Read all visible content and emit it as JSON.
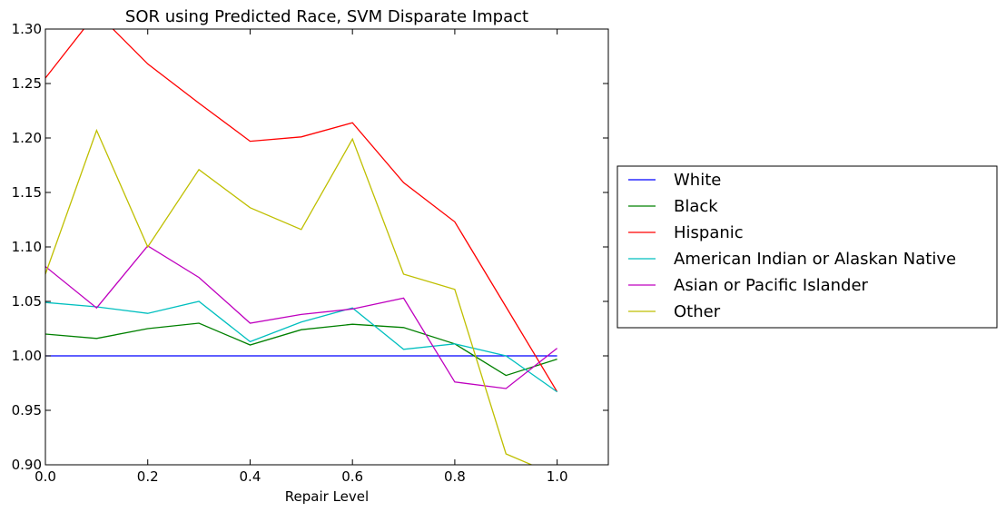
{
  "chart_data": {
    "type": "line",
    "title": "SOR using Predicted Race, SVM Disparate Impact",
    "xlabel": "Repair Level",
    "ylabel": "",
    "xlim": [
      0.0,
      1.1
    ],
    "ylim": [
      0.9,
      1.3
    ],
    "xticks": [
      "0.0",
      "0.2",
      "0.4",
      "0.6",
      "0.8",
      "1.0"
    ],
    "yticks": [
      "0.90",
      "0.95",
      "1.00",
      "1.05",
      "1.10",
      "1.15",
      "1.20",
      "1.25",
      "1.30"
    ],
    "grid": false,
    "legend_position": "right-outside",
    "x": [
      0.0,
      0.1,
      0.2,
      0.3,
      0.4,
      0.5,
      0.6,
      0.7,
      0.8,
      0.9,
      1.0
    ],
    "series": [
      {
        "name": "White",
        "color": "#0000ff",
        "values": [
          1.0,
          1.0,
          1.0,
          1.0,
          1.0,
          1.0,
          1.0,
          1.0,
          1.0,
          1.0,
          1.0
        ]
      },
      {
        "name": "Black",
        "color": "#008000",
        "values": [
          1.02,
          1.016,
          1.025,
          1.03,
          1.01,
          1.024,
          1.029,
          1.026,
          1.011,
          0.982,
          0.997
        ]
      },
      {
        "name": "Hispanic",
        "color": "#ff0000",
        "values": [
          1.255,
          1.315,
          1.268,
          1.232,
          1.197,
          1.201,
          1.214,
          1.159,
          1.123,
          1.045,
          0.967
        ]
      },
      {
        "name": "American Indian or Alaskan Native",
        "color": "#00bfbf",
        "values": [
          1.049,
          1.045,
          1.039,
          1.05,
          1.013,
          1.031,
          1.044,
          1.006,
          1.011,
          1.0,
          0.967
        ]
      },
      {
        "name": "Asian or Pacific Islander",
        "color": "#bf00bf",
        "values": [
          1.082,
          1.044,
          1.101,
          1.072,
          1.03,
          1.038,
          1.043,
          1.053,
          0.976,
          0.97,
          1.007
        ]
      },
      {
        "name": "Other",
        "color": "#bfbf00",
        "values": [
          1.075,
          1.207,
          1.1,
          1.171,
          1.136,
          1.116,
          1.199,
          1.075,
          1.061,
          0.91,
          0.89
        ]
      }
    ]
  }
}
